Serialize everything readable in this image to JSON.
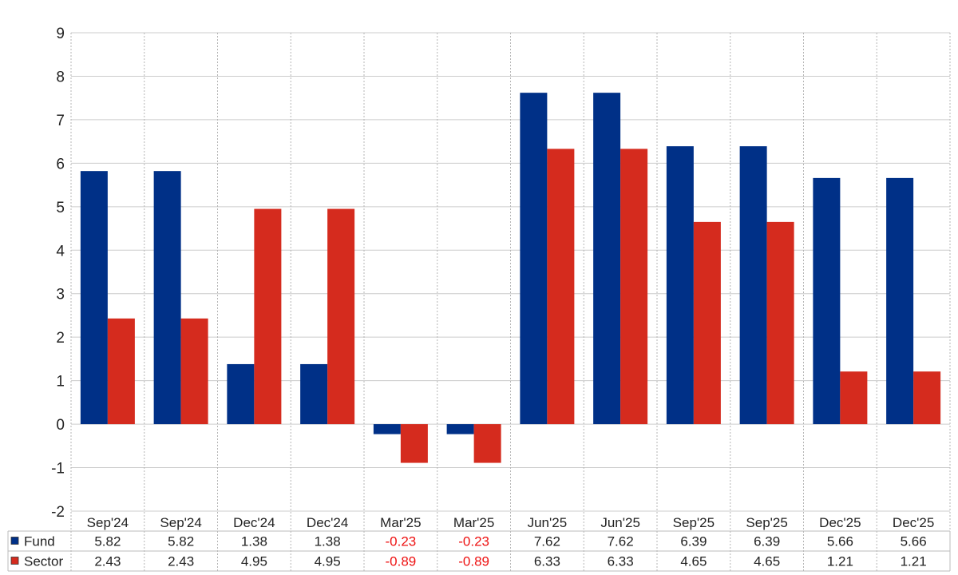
{
  "chart_data": {
    "type": "bar",
    "categories": [
      "Sep'24",
      "Sep'24",
      "Dec'24",
      "Dec'24",
      "Mar'25",
      "Mar'25",
      "Jun'25",
      "Jun'25",
      "Sep'25",
      "Sep'25",
      "Dec'25",
      "Dec'25"
    ],
    "series": [
      {
        "name": "Fund",
        "color": "#003087",
        "values": [
          5.82,
          5.82,
          1.38,
          1.38,
          -0.23,
          -0.23,
          7.62,
          7.62,
          6.39,
          6.39,
          5.66,
          5.66
        ],
        "labels": [
          "5.82",
          "5.82",
          "1.38",
          "1.38",
          "-0.23",
          "-0.23",
          "7.62",
          "7.62",
          "6.39",
          "6.39",
          "5.66",
          "5.66"
        ]
      },
      {
        "name": "Sector",
        "color": "#d52b1e",
        "values": [
          2.43,
          2.43,
          4.95,
          4.95,
          -0.89,
          -0.89,
          6.33,
          6.33,
          4.65,
          4.65,
          1.21,
          1.21
        ],
        "labels": [
          "2.43",
          "2.43",
          "4.95",
          "4.95",
          "-0.89",
          "-0.89",
          "6.33",
          "6.33",
          "4.65",
          "4.65",
          "1.21",
          "1.21"
        ]
      }
    ],
    "ylim": [
      -2,
      9
    ],
    "yticks": [
      "-2",
      "-1",
      "0",
      "1",
      "2",
      "3",
      "4",
      "5",
      "6",
      "7",
      "8",
      "9"
    ],
    "grid": true,
    "legend": "data table below chart",
    "negative_value_color": "#ee1111"
  }
}
